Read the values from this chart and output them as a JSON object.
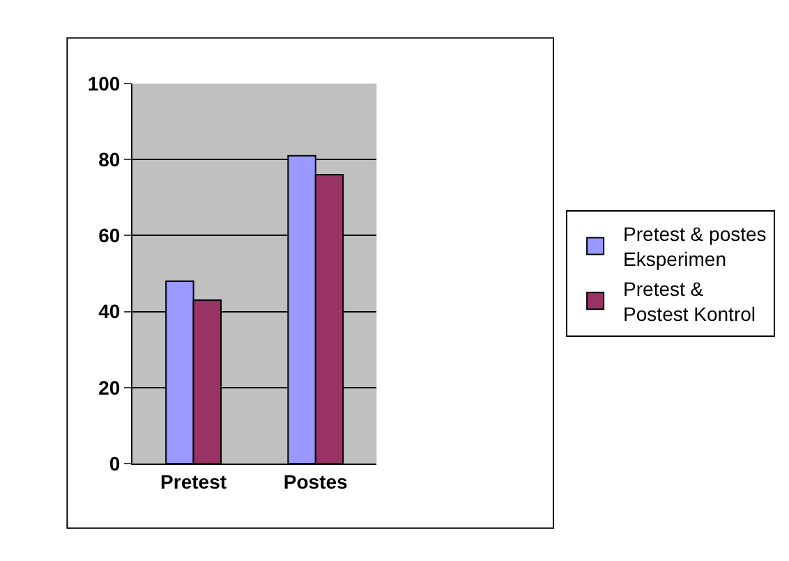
{
  "chart_data": {
    "type": "bar",
    "categories": [
      "Pretest",
      "Postes"
    ],
    "series": [
      {
        "name": "Pretest & postes Eksperimen",
        "color": "#9999ff",
        "values": [
          48,
          81
        ]
      },
      {
        "name": "Pretest & Postest Kontrol",
        "color": "#993366",
        "values": [
          43,
          76
        ]
      }
    ],
    "ylim": [
      0,
      100
    ],
    "yticks": [
      0,
      20,
      40,
      60,
      80,
      100
    ],
    "grid": "y",
    "legend": "right"
  }
}
